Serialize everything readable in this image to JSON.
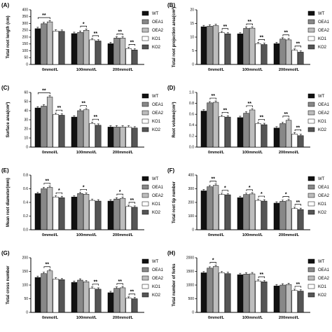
{
  "legend": {
    "items": [
      {
        "name": "WT",
        "color": "#111111"
      },
      {
        "name": "OEA1",
        "color": "#888888"
      },
      {
        "name": "OEA2",
        "color": "#bdbdbd"
      },
      {
        "name": "KO1",
        "color": "#ffffff"
      },
      {
        "name": "KO2",
        "color": "#555555"
      }
    ]
  },
  "chart_data": [
    {
      "panel": "(A)",
      "type": "bar",
      "ylabel": "Total root length (cm)",
      "categories": [
        "0mmol/L",
        "100mmol/L",
        "200mmol/L"
      ],
      "ylim": [
        0,
        400
      ],
      "yticks": [
        0,
        50,
        100,
        150,
        200,
        250,
        300,
        350,
        400
      ],
      "series": [
        {
          "name": "WT",
          "values": [
            262,
            226,
            152
          ]
        },
        {
          "name": "OEA1",
          "values": [
            298,
            235,
            193
          ]
        },
        {
          "name": "OEA2",
          "values": [
            312,
            250,
            193
          ]
        },
        {
          "name": "KO1",
          "values": [
            244,
            180,
            116
          ]
        },
        {
          "name": "KO2",
          "values": [
            242,
            172,
            106
          ]
        }
      ],
      "significance": [
        {
          "label": "**",
          "group": 0,
          "from": 0,
          "to": 2
        },
        {
          "label": "*",
          "group": 1,
          "from": 1,
          "to": 2
        },
        {
          "label": "**",
          "group": 1,
          "from": 3,
          "to": 4
        },
        {
          "label": "**",
          "group": 2,
          "from": 1,
          "to": 2
        },
        {
          "label": "**",
          "group": 2,
          "from": 3,
          "to": 4
        }
      ]
    },
    {
      "panel": "(B)",
      "type": "bar",
      "ylabel": "Total root projection area(cm²)",
      "categories": [
        "0mmol/L",
        "100mmol/L",
        "200mmol/L"
      ],
      "ylim": [
        0,
        20
      ],
      "yticks": [
        0,
        5,
        10,
        15,
        20
      ],
      "series": [
        {
          "name": "WT",
          "values": [
            13.8,
            11.2,
            7.6
          ]
        },
        {
          "name": "OEA1",
          "values": [
            14.0,
            13.2,
            9.3
          ]
        },
        {
          "name": "OEA2",
          "values": [
            14.2,
            13.3,
            9.0
          ]
        },
        {
          "name": "KO1",
          "values": [
            11.6,
            7.6,
            5.2
          ]
        },
        {
          "name": "KO2",
          "values": [
            11.2,
            7.3,
            4.5
          ]
        }
      ],
      "significance": [
        {
          "label": "**",
          "group": 0,
          "from": 3,
          "to": 4
        },
        {
          "label": "**",
          "group": 1,
          "from": 1,
          "to": 2
        },
        {
          "label": "**",
          "group": 1,
          "from": 3,
          "to": 4
        },
        {
          "label": "**",
          "group": 2,
          "from": 1,
          "to": 2
        },
        {
          "label": "**",
          "group": 2,
          "from": 3,
          "to": 4
        }
      ]
    },
    {
      "panel": "(C)",
      "type": "bar",
      "ylabel": "Surface area(cm²)",
      "categories": [
        "0mmol/L",
        "100mmol/L",
        "200mmol/L"
      ],
      "ylim": [
        0,
        60
      ],
      "yticks": [
        0,
        10,
        20,
        30,
        40,
        50,
        60
      ],
      "series": [
        {
          "name": "WT",
          "values": [
            43,
            33,
            22
          ]
        },
        {
          "name": "OEA1",
          "values": [
            45,
            40,
            22
          ]
        },
        {
          "name": "OEA2",
          "values": [
            55,
            41,
            22
          ]
        },
        {
          "name": "KO1",
          "values": [
            36,
            26,
            22
          ]
        },
        {
          "name": "KO2",
          "values": [
            35,
            24,
            21
          ]
        }
      ],
      "significance": [
        {
          "label": "**",
          "group": 0,
          "from": 0,
          "to": 2
        },
        {
          "label": "**",
          "group": 0,
          "from": 3,
          "to": 4
        },
        {
          "label": "**",
          "group": 1,
          "from": 1,
          "to": 2
        },
        {
          "label": "**",
          "group": 1,
          "from": 3,
          "to": 4
        }
      ]
    },
    {
      "panel": "(D)",
      "type": "bar",
      "ylabel": "Root volume(cm³)",
      "categories": [
        "0mmol/L",
        "100mmol/L",
        "200mmol/L"
      ],
      "ylim": [
        0,
        1.0
      ],
      "yticks": [
        0.0,
        0.2,
        0.4,
        0.6,
        0.8,
        1.0
      ],
      "series": [
        {
          "name": "WT",
          "values": [
            0.66,
            0.54,
            0.35
          ]
        },
        {
          "name": "OEA1",
          "values": [
            0.81,
            0.62,
            0.43
          ]
        },
        {
          "name": "OEA2",
          "values": [
            0.82,
            0.68,
            0.49
          ]
        },
        {
          "name": "KO1",
          "values": [
            0.56,
            0.43,
            0.24
          ]
        },
        {
          "name": "KO2",
          "values": [
            0.55,
            0.41,
            0.21
          ]
        }
      ],
      "significance": [
        {
          "label": "**",
          "group": 0,
          "from": 1,
          "to": 2
        },
        {
          "label": "**",
          "group": 0,
          "from": 3,
          "to": 4
        },
        {
          "label": "**",
          "group": 1,
          "from": 1,
          "to": 2
        },
        {
          "label": "**",
          "group": 1,
          "from": 3,
          "to": 4
        },
        {
          "label": "**",
          "group": 2,
          "from": 1,
          "to": 2
        },
        {
          "label": "**",
          "group": 2,
          "from": 3,
          "to": 4
        }
      ]
    },
    {
      "panel": "(E)",
      "type": "bar",
      "ylabel": "Mean root diameter(mm)",
      "categories": [
        "0mmol/L",
        "100mmol/L",
        "200mmol/L"
      ],
      "ylim": [
        0,
        0.8
      ],
      "yticks": [
        0.0,
        0.2,
        0.4,
        0.6,
        0.8
      ],
      "series": [
        {
          "name": "WT",
          "values": [
            0.53,
            0.48,
            0.42
          ]
        },
        {
          "name": "OEA1",
          "values": [
            0.6,
            0.53,
            0.45
          ]
        },
        {
          "name": "OEA2",
          "values": [
            0.62,
            0.52,
            0.46
          ]
        },
        {
          "name": "KO1",
          "values": [
            0.48,
            0.43,
            0.34
          ]
        },
        {
          "name": "KO2",
          "values": [
            0.47,
            0.42,
            0.33
          ]
        }
      ],
      "significance": [
        {
          "label": "**",
          "group": 0,
          "from": 1,
          "to": 2
        },
        {
          "label": "*",
          "group": 0,
          "from": 3,
          "to": 4
        },
        {
          "label": "*",
          "group": 1,
          "from": 1,
          "to": 2
        },
        {
          "label": "*",
          "group": 2,
          "from": 1,
          "to": 2
        },
        {
          "label": "**",
          "group": 2,
          "from": 3,
          "to": 4
        }
      ]
    },
    {
      "panel": "(F)",
      "type": "bar",
      "ylabel": "Total root tip number",
      "categories": [
        "0mmol/L",
        "100mmol/L",
        "200mmol/L"
      ],
      "ylim": [
        0,
        400
      ],
      "yticks": [
        0,
        100,
        200,
        300,
        400
      ],
      "series": [
        {
          "name": "WT",
          "values": [
            285,
            235,
            195
          ]
        },
        {
          "name": "OEA1",
          "values": [
            315,
            258,
            208
          ]
        },
        {
          "name": "OEA2",
          "values": [
            325,
            262,
            212
          ]
        },
        {
          "name": "KO1",
          "values": [
            258,
            215,
            155
          ]
        },
        {
          "name": "KO2",
          "values": [
            256,
            210,
            148
          ]
        }
      ],
      "significance": [
        {
          "label": "**",
          "group": 0,
          "from": 1,
          "to": 2
        },
        {
          "label": "*",
          "group": 0,
          "from": 3,
          "to": 4
        },
        {
          "label": "*",
          "group": 1,
          "from": 1,
          "to": 2
        },
        {
          "label": "*",
          "group": 1,
          "from": 3,
          "to": 4
        },
        {
          "label": "*",
          "group": 2,
          "from": 1,
          "to": 2
        },
        {
          "label": "**",
          "group": 2,
          "from": 3,
          "to": 4
        }
      ]
    },
    {
      "panel": "(G)",
      "type": "bar",
      "ylabel": "Total cross number",
      "categories": [
        "0mmol/L",
        "100mmol/L",
        "200mmol/L"
      ],
      "ylim": [
        0,
        200
      ],
      "yticks": [
        0,
        50,
        100,
        150,
        200
      ],
      "series": [
        {
          "name": "WT",
          "values": [
            128,
            110,
            72
          ]
        },
        {
          "name": "OEA1",
          "values": [
            142,
            118,
            88
          ]
        },
        {
          "name": "OEA2",
          "values": [
            152,
            112,
            90
          ]
        },
        {
          "name": "KO1",
          "values": [
            122,
            88,
            52
          ]
        },
        {
          "name": "KO2",
          "values": [
            120,
            85,
            50
          ]
        }
      ],
      "significance": [
        {
          "label": "**",
          "group": 0,
          "from": 1,
          "to": 2
        },
        {
          "label": "**",
          "group": 1,
          "from": 3,
          "to": 4
        },
        {
          "label": "**",
          "group": 2,
          "from": 1,
          "to": 2
        },
        {
          "label": "**",
          "group": 2,
          "from": 3,
          "to": 4
        }
      ]
    },
    {
      "panel": "(H)",
      "type": "bar",
      "ylabel": "Total number of forks",
      "categories": [
        "0mmol/L",
        "100mmol/L",
        "200mmol/L"
      ],
      "ylim": [
        0,
        2000
      ],
      "yticks": [
        0,
        500,
        1000,
        1500,
        2000
      ],
      "series": [
        {
          "name": "WT",
          "values": [
            1450,
            1380,
            970
          ]
        },
        {
          "name": "OEA1",
          "values": [
            1620,
            1400,
            1000
          ]
        },
        {
          "name": "OEA2",
          "values": [
            1680,
            1410,
            1020
          ]
        },
        {
          "name": "KO1",
          "values": [
            1450,
            1150,
            800
          ]
        },
        {
          "name": "KO2",
          "values": [
            1420,
            1120,
            780
          ]
        }
      ],
      "significance": [
        {
          "label": "*",
          "group": 0,
          "from": 1,
          "to": 2
        },
        {
          "label": "**",
          "group": 1,
          "from": 3,
          "to": 4
        },
        {
          "label": "**",
          "group": 2,
          "from": 3,
          "to": 4
        }
      ]
    }
  ]
}
